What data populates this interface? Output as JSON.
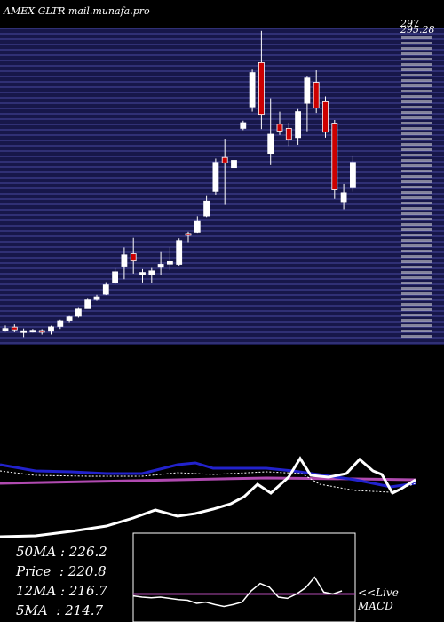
{
  "header": {
    "ticker_label": "AMEX GLTR",
    "site_label": "mail.munafa.pro"
  },
  "chart_data": {
    "type": "candlestick",
    "price_axis_labels": [
      "297",
      "295.28"
    ],
    "candles": [
      {
        "o": 167.2,
        "h": 168.5,
        "l": 165.8,
        "c": 166.9,
        "color": "white"
      },
      {
        "o": 167.8,
        "h": 169.0,
        "l": 165.5,
        "c": 166.6,
        "color": "red"
      },
      {
        "o": 166.2,
        "h": 167.2,
        "l": 163.4,
        "c": 165.4,
        "color": "white"
      },
      {
        "o": 166.4,
        "h": 167.0,
        "l": 165.4,
        "c": 166.1,
        "color": "white"
      },
      {
        "o": 166.3,
        "h": 166.9,
        "l": 164.5,
        "c": 165.6,
        "color": "red"
      },
      {
        "o": 166.0,
        "h": 168.4,
        "l": 164.5,
        "c": 167.9,
        "color": "white"
      },
      {
        "o": 168.1,
        "h": 171.1,
        "l": 167.0,
        "c": 170.6,
        "color": "white"
      },
      {
        "o": 170.8,
        "h": 172.7,
        "l": 170.0,
        "c": 172.3,
        "color": "white"
      },
      {
        "o": 172.6,
        "h": 176.3,
        "l": 172.0,
        "c": 175.8,
        "color": "white"
      },
      {
        "o": 176.0,
        "h": 180.7,
        "l": 176.0,
        "c": 179.8,
        "color": "white"
      },
      {
        "o": 180.0,
        "h": 182.1,
        "l": 179.4,
        "c": 181.2,
        "color": "white"
      },
      {
        "o": 182.4,
        "h": 187.7,
        "l": 182.0,
        "c": 186.5,
        "color": "white"
      },
      {
        "o": 187.6,
        "h": 193.9,
        "l": 186.8,
        "c": 192.3,
        "color": "white"
      },
      {
        "o": 194.8,
        "h": 203.1,
        "l": 189.0,
        "c": 199.8,
        "color": "white"
      },
      {
        "o": 200.3,
        "h": 207.3,
        "l": 191.5,
        "c": 197.1,
        "color": "red"
      },
      {
        "o": 191.5,
        "h": 193.5,
        "l": 187.6,
        "c": 192.0,
        "color": "white"
      },
      {
        "o": 191.1,
        "h": 194.0,
        "l": 187.3,
        "c": 192.7,
        "color": "white"
      },
      {
        "o": 194.3,
        "h": 201.0,
        "l": 190.9,
        "c": 195.6,
        "color": "white"
      },
      {
        "o": 195.7,
        "h": 203.1,
        "l": 193.0,
        "c": 196.8,
        "color": "white"
      },
      {
        "o": 195.6,
        "h": 207.1,
        "l": 195.0,
        "c": 206.1,
        "color": "white"
      },
      {
        "o": 208.4,
        "h": 210.0,
        "l": 205.4,
        "c": 209.2,
        "color": "red"
      },
      {
        "o": 209.8,
        "h": 216.9,
        "l": 209.5,
        "c": 214.6,
        "color": "white"
      },
      {
        "o": 217.0,
        "h": 225.8,
        "l": 216.5,
        "c": 223.6,
        "color": "white"
      },
      {
        "o": 227.9,
        "h": 242.4,
        "l": 226.5,
        "c": 240.7,
        "color": "white"
      },
      {
        "o": 242.9,
        "h": 251.2,
        "l": 221.9,
        "c": 240.5,
        "color": "red"
      },
      {
        "o": 238.4,
        "h": 246.5,
        "l": 234.2,
        "c": 241.6,
        "color": "white"
      },
      {
        "o": 255.8,
        "h": 259.2,
        "l": 255.0,
        "c": 258.3,
        "color": "white"
      },
      {
        "o": 265.3,
        "h": 281.8,
        "l": 263.2,
        "c": 280.5,
        "color": "white"
      },
      {
        "o": 284.9,
        "h": 298.9,
        "l": 255.5,
        "c": 262.0,
        "color": "red"
      },
      {
        "o": 253.2,
        "h": 269.1,
        "l": 239.5,
        "c": 244.7,
        "color": "white"
      },
      {
        "o": 257.6,
        "h": 263.2,
        "l": 252.9,
        "c": 254.6,
        "color": "red"
      },
      {
        "o": 255.8,
        "h": 258.3,
        "l": 248.0,
        "c": 250.9,
        "color": "red"
      },
      {
        "o": 251.7,
        "h": 264.3,
        "l": 248.5,
        "c": 263.2,
        "color": "white"
      },
      {
        "o": 266.9,
        "h": 278.7,
        "l": 254.5,
        "c": 278.1,
        "color": "white"
      },
      {
        "o": 276.2,
        "h": 281.5,
        "l": 262.6,
        "c": 264.8,
        "color": "red"
      },
      {
        "o": 267.6,
        "h": 269.9,
        "l": 251.7,
        "c": 254.1,
        "color": "red"
      },
      {
        "o": 258.1,
        "h": 259.5,
        "l": 224.6,
        "c": 228.6,
        "color": "red"
      },
      {
        "o": 223.3,
        "h": 231.2,
        "l": 220.0,
        "c": 227.3,
        "color": "white"
      },
      {
        "o": 229.5,
        "h": 243.8,
        "l": 227.8,
        "c": 240.7,
        "color": "white"
      }
    ],
    "indicator_lines": {
      "volume_style": [
        0.62,
        0.62,
        0.58,
        0.6,
        0.56,
        0.54,
        0.52,
        0.5,
        0.48,
        0.46,
        0.44,
        0.42,
        0.4,
        0.38,
        0.37,
        0.36,
        0.38,
        0.4,
        0.43,
        0.48,
        0.52,
        0.55,
        0.5,
        0.47,
        0.45,
        0.42,
        0.38,
        0.35,
        0.33,
        0.3,
        0.28,
        0.26,
        0.24,
        0.22,
        0.2,
        0.18,
        0.24,
        0.3,
        0.28,
        0.25
      ]
    },
    "macd": {
      "price_line": [
        0.42,
        0.4,
        0.39,
        0.4,
        0.38,
        0.36,
        0.35,
        0.3,
        0.32,
        0.28,
        0.25,
        0.28,
        0.32,
        0.5,
        0.62,
        0.56,
        0.4,
        0.38,
        0.45,
        0.55,
        0.72,
        0.48,
        0.45,
        0.5
      ],
      "signal_level": 0.45
    },
    "stats": [
      {
        "label": "50MA",
        "value": "226.2"
      },
      {
        "label": "Price",
        "value": "220.8"
      },
      {
        "label": "12MA",
        "value": "216.7"
      },
      {
        "label": "5MA",
        "value": "214.7"
      }
    ],
    "macd_label_1": "<<Live",
    "macd_label_2": "MACD"
  }
}
